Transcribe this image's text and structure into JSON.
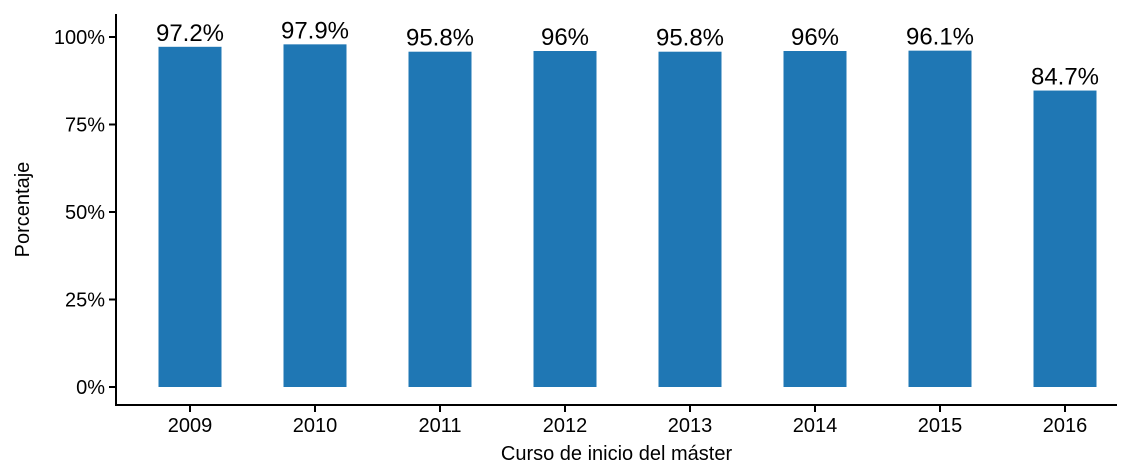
{
  "chart_data": {
    "type": "bar",
    "title": "",
    "xlabel": "Curso de inicio del máster",
    "ylabel": "Porcentaje",
    "categories": [
      "2009",
      "2010",
      "2011",
      "2012",
      "2013",
      "2014",
      "2015",
      "2016"
    ],
    "values": [
      97.2,
      97.9,
      95.8,
      96,
      95.8,
      96,
      96.1,
      84.7
    ],
    "value_labels": [
      "97.2%",
      "97.9%",
      "95.8%",
      "96%",
      "95.8%",
      "96%",
      "96.1%",
      "84.7%"
    ],
    "ylim": [
      0,
      100
    ],
    "yticks": [
      0,
      25,
      50,
      75,
      100
    ],
    "ytick_labels": [
      "0%",
      "25%",
      "50%",
      "75%",
      "100%"
    ],
    "grid": false,
    "legend": "none",
    "bar_color": "#1f77b4"
  }
}
